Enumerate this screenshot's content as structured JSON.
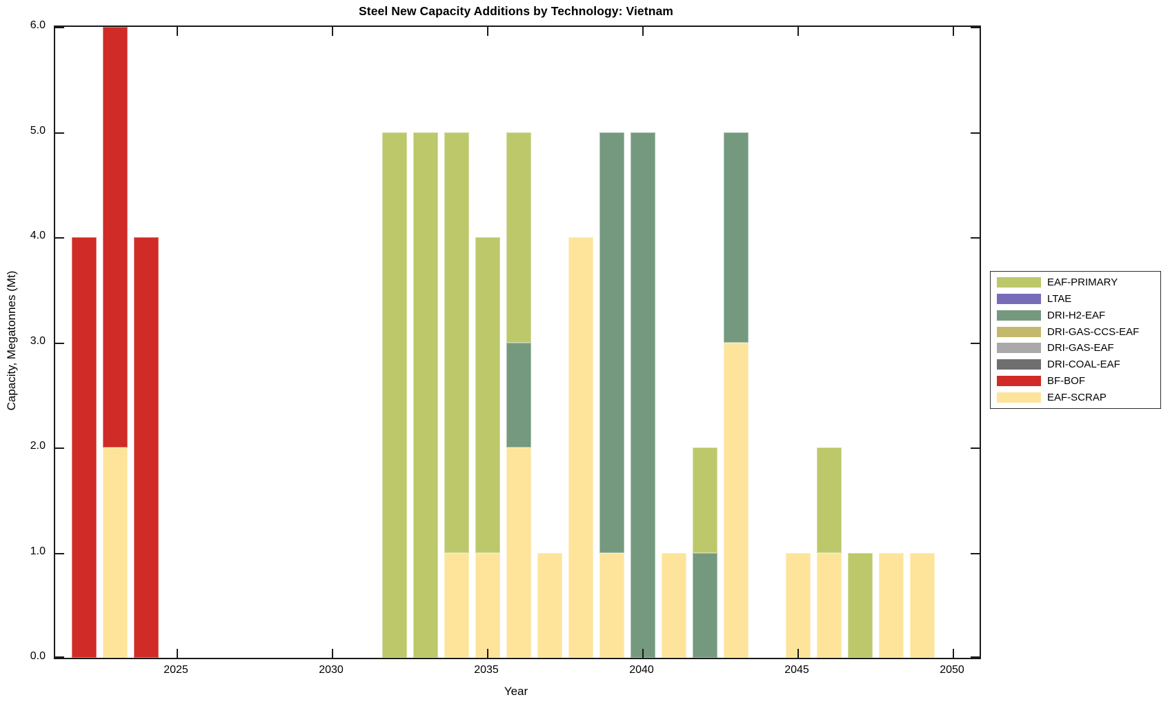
{
  "title": "Steel New Capacity Additions by Technology: Vietnam",
  "xlabel": "Year",
  "ylabel": "Capacity, Megatonnes (Mt)",
  "legend": [
    {
      "label": "EAF-PRIMARY",
      "color": "#bcc86a"
    },
    {
      "label": "LTAE",
      "color": "#776cba"
    },
    {
      "label": "DRI-H2-EAF",
      "color": "#75997e"
    },
    {
      "label": "DRI-GAS-CCS-EAF",
      "color": "#c4b96b"
    },
    {
      "label": "DRI-GAS-EAF",
      "color": "#a9a9a9"
    },
    {
      "label": "DRI-COAL-EAF",
      "color": "#6f6f6f"
    },
    {
      "label": "BF-BOF",
      "color": "#d02b26"
    },
    {
      "label": "EAF-SCRAP",
      "color": "#fde49a"
    }
  ],
  "axis_color": "#1a1a1a",
  "chart_data": {
    "type": "bar",
    "subtype": "stacked-vertical",
    "title": "Steel New Capacity Additions by Technology: Vietnam",
    "xlabel": "Year",
    "ylabel": "Capacity, Megatonnes (Mt)",
    "xlim": [
      2021.07,
      2050.85
    ],
    "ylim": [
      0,
      6
    ],
    "x_tick_labels": [
      "2025",
      "2030",
      "2035",
      "2040",
      "2045",
      "2050"
    ],
    "x_ticks": [
      2025,
      2030,
      2035,
      2040,
      2045,
      2050
    ],
    "y_tick_labels": [
      "0.0",
      "1.0",
      "2.0",
      "3.0",
      "4.0",
      "5.0",
      "6.0"
    ],
    "y_ticks": [
      0,
      1,
      2,
      3,
      4,
      5,
      6
    ],
    "grid": false,
    "legend_position": "outside-right",
    "series_order": [
      "EAF-PRIMARY",
      "LTAE",
      "DRI-H2-EAF",
      "DRI-GAS-CCS-EAF",
      "DRI-GAS-EAF",
      "DRI-COAL-EAF",
      "BF-BOF",
      "EAF-SCRAP"
    ],
    "bars": [
      {
        "year": 2022,
        "segments": [
          {
            "tech": "BF-BOF",
            "value": 4
          }
        ]
      },
      {
        "year": 2023,
        "segments": [
          {
            "tech": "EAF-SCRAP",
            "value": 2
          },
          {
            "tech": "BF-BOF",
            "value": 4
          }
        ]
      },
      {
        "year": 2024,
        "segments": [
          {
            "tech": "BF-BOF",
            "value": 4
          }
        ]
      },
      {
        "year": 2032,
        "segments": [
          {
            "tech": "EAF-PRIMARY",
            "value": 5
          }
        ]
      },
      {
        "year": 2033,
        "segments": [
          {
            "tech": "EAF-PRIMARY",
            "value": 5
          }
        ]
      },
      {
        "year": 2034,
        "segments": [
          {
            "tech": "EAF-SCRAP",
            "value": 1
          },
          {
            "tech": "EAF-PRIMARY",
            "value": 4
          }
        ]
      },
      {
        "year": 2035,
        "segments": [
          {
            "tech": "EAF-SCRAP",
            "value": 1
          },
          {
            "tech": "EAF-PRIMARY",
            "value": 3
          }
        ]
      },
      {
        "year": 2036,
        "segments": [
          {
            "tech": "EAF-SCRAP",
            "value": 2
          },
          {
            "tech": "DRI-H2-EAF",
            "value": 1
          },
          {
            "tech": "EAF-PRIMARY",
            "value": 2
          }
        ]
      },
      {
        "year": 2037,
        "segments": [
          {
            "tech": "EAF-SCRAP",
            "value": 1
          }
        ]
      },
      {
        "year": 2038,
        "segments": [
          {
            "tech": "EAF-SCRAP",
            "value": 4
          }
        ]
      },
      {
        "year": 2039,
        "segments": [
          {
            "tech": "EAF-SCRAP",
            "value": 1
          },
          {
            "tech": "DRI-H2-EAF",
            "value": 4
          }
        ]
      },
      {
        "year": 2040,
        "segments": [
          {
            "tech": "DRI-H2-EAF",
            "value": 5
          }
        ]
      },
      {
        "year": 2041,
        "segments": [
          {
            "tech": "EAF-SCRAP",
            "value": 1
          }
        ]
      },
      {
        "year": 2042,
        "segments": [
          {
            "tech": "DRI-H2-EAF",
            "value": 1
          },
          {
            "tech": "EAF-PRIMARY",
            "value": 1
          }
        ]
      },
      {
        "year": 2043,
        "segments": [
          {
            "tech": "EAF-SCRAP",
            "value": 3
          },
          {
            "tech": "DRI-H2-EAF",
            "value": 2
          }
        ]
      },
      {
        "year": 2045,
        "segments": [
          {
            "tech": "EAF-SCRAP",
            "value": 1
          }
        ]
      },
      {
        "year": 2046,
        "segments": [
          {
            "tech": "EAF-SCRAP",
            "value": 1
          },
          {
            "tech": "EAF-PRIMARY",
            "value": 1
          }
        ]
      },
      {
        "year": 2047,
        "segments": [
          {
            "tech": "EAF-PRIMARY",
            "value": 1
          }
        ]
      },
      {
        "year": 2048,
        "segments": [
          {
            "tech": "EAF-SCRAP",
            "value": 1
          }
        ]
      },
      {
        "year": 2049,
        "segments": [
          {
            "tech": "EAF-SCRAP",
            "value": 1
          }
        ]
      }
    ]
  }
}
